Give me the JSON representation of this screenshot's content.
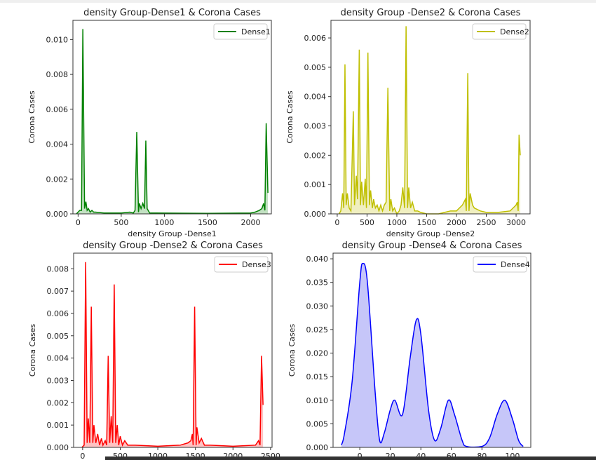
{
  "chart_data": [
    {
      "type": "area",
      "title": "density Group-Dense1 & Corona Cases",
      "xlabel": "density Group -Dense1",
      "ylabel": "Corona Cases",
      "legend": {
        "entry": "Dense1",
        "placement": "top-right"
      },
      "color": "#008000",
      "fill": "#b3d9b3",
      "xlim": [
        -60,
        2240
      ],
      "ylim": [
        0,
        0.0111
      ],
      "xticks": [
        0,
        500,
        1000,
        1500,
        2000
      ],
      "yticks": [
        0.0,
        0.002,
        0.004,
        0.006,
        0.008,
        0.01
      ],
      "ytick_labels": [
        "0.000",
        "0.002",
        "0.004",
        "0.006",
        "0.008",
        "0.010"
      ],
      "grid": false,
      "points": [
        [
          -20,
          0
        ],
        [
          0,
          0.0001
        ],
        [
          20,
          0.0002
        ],
        [
          40,
          0.0002
        ],
        [
          55,
          0.0106
        ],
        [
          75,
          0.0003
        ],
        [
          90,
          0.0007
        ],
        [
          105,
          0.0002
        ],
        [
          120,
          0.0003
        ],
        [
          140,
          0.0001
        ],
        [
          160,
          0.0002
        ],
        [
          180,
          0.0001
        ],
        [
          200,
          0.0001
        ],
        [
          300,
          5e-05
        ],
        [
          400,
          5e-05
        ],
        [
          500,
          5e-05
        ],
        [
          600,
          0.0001
        ],
        [
          640,
          5e-05
        ],
        [
          660,
          0.0002
        ],
        [
          680,
          0.0047
        ],
        [
          700,
          0.0001
        ],
        [
          710,
          0.0006
        ],
        [
          730,
          0.0003
        ],
        [
          750,
          0.0006
        ],
        [
          770,
          0.0003
        ],
        [
          785,
          0.0042
        ],
        [
          800,
          0.0003
        ],
        [
          830,
          5e-05
        ],
        [
          900,
          5e-05
        ],
        [
          1500,
          3e-05
        ],
        [
          2000,
          5e-05
        ],
        [
          2050,
          0.0001
        ],
        [
          2100,
          0.0002
        ],
        [
          2130,
          0.0003
        ],
        [
          2150,
          0.0006
        ],
        [
          2165,
          0.0002
        ],
        [
          2180,
          0.0052
        ],
        [
          2200,
          0.0012
        ]
      ]
    },
    {
      "type": "area",
      "title": "density Group -Dense2 & Corona Cases",
      "xlabel": "density Group -Dense2",
      "ylabel": "Corona Cases",
      "legend": {
        "entry": "Dense2",
        "placement": "top-right"
      },
      "color": "#bfbf00",
      "fill": "#ecebb0",
      "xlim": [
        -105,
        3235
      ],
      "ylim": [
        0,
        0.0066
      ],
      "xticks": [
        0,
        500,
        1000,
        1500,
        2000,
        2500,
        3000
      ],
      "yticks": [
        0.0,
        0.001,
        0.002,
        0.003,
        0.004,
        0.005,
        0.006
      ],
      "ytick_labels": [
        "0.000",
        "0.001",
        "0.002",
        "0.003",
        "0.004",
        "0.005",
        "0.006"
      ],
      "grid": false,
      "points": [
        [
          30,
          0
        ],
        [
          60,
          0.0001
        ],
        [
          90,
          0.0007
        ],
        [
          110,
          0.0002
        ],
        [
          130,
          0.0051
        ],
        [
          150,
          0.0003
        ],
        [
          170,
          0.0007
        ],
        [
          200,
          0.0002
        ],
        [
          230,
          0.0001
        ],
        [
          270,
          0.0035
        ],
        [
          290,
          0.0003
        ],
        [
          320,
          0.0013
        ],
        [
          340,
          0.0005
        ],
        [
          370,
          0.0056
        ],
        [
          390,
          0.0003
        ],
        [
          410,
          0.0011
        ],
        [
          440,
          0.0003
        ],
        [
          470,
          0.0012
        ],
        [
          490,
          0.0002
        ],
        [
          515,
          0.0055
        ],
        [
          540,
          0.0003
        ],
        [
          560,
          0.0008
        ],
        [
          590,
          0.0002
        ],
        [
          610,
          0.0005
        ],
        [
          640,
          0.0002
        ],
        [
          670,
          0.0003
        ],
        [
          700,
          0.0001
        ],
        [
          730,
          0.0003
        ],
        [
          760,
          0.0001
        ],
        [
          790,
          0.0003
        ],
        [
          820,
          0.0004
        ],
        [
          850,
          0.0043
        ],
        [
          880,
          0.0001
        ],
        [
          900,
          0.0005
        ],
        [
          930,
          0.0001
        ],
        [
          960,
          0.0002
        ],
        [
          1000,
          0
        ],
        [
          1040,
          0.0001
        ],
        [
          1070,
          0.0003
        ],
        [
          1100,
          0.0009
        ],
        [
          1130,
          0.0002
        ],
        [
          1155,
          0.0064
        ],
        [
          1180,
          0.0002
        ],
        [
          1200,
          0.0009
        ],
        [
          1230,
          0.0002
        ],
        [
          1260,
          0.0004
        ],
        [
          1300,
          0.0001
        ],
        [
          1350,
          0.0001
        ],
        [
          1400,
          5e-05
        ],
        [
          1500,
          0
        ],
        [
          1700,
          0
        ],
        [
          1800,
          5e-05
        ],
        [
          1900,
          0.0001
        ],
        [
          2000,
          0.0001
        ],
        [
          2050,
          0.0002
        ],
        [
          2100,
          0.0003
        ],
        [
          2150,
          0.0005
        ],
        [
          2165,
          0.0001
        ],
        [
          2190,
          0.0048
        ],
        [
          2210,
          0.0001
        ],
        [
          2230,
          0.0007
        ],
        [
          2270,
          0.0003
        ],
        [
          2300,
          0.0002
        ],
        [
          2400,
          0.0001
        ],
        [
          2500,
          5e-05
        ],
        [
          2700,
          5e-05
        ],
        [
          2900,
          0.0001
        ],
        [
          2950,
          0.0002
        ],
        [
          3000,
          0.0003
        ],
        [
          3020,
          0.0004
        ],
        [
          3035,
          0.0001
        ],
        [
          3050,
          0.0027
        ],
        [
          3070,
          0.002
        ]
      ]
    },
    {
      "type": "area",
      "title": "density Group -Dense2 & Corona Cases",
      "xlabel": "",
      "ylabel": "Corona Cases",
      "legend": {
        "entry": "Dense3",
        "placement": "top-right"
      },
      "color": "#ff0000",
      "fill": "#ffb3b3",
      "xlim": [
        -120,
        2520
      ],
      "ylim": [
        0,
        0.0087
      ],
      "xticks": [
        0,
        500,
        1000,
        1500,
        2000,
        2500
      ],
      "yticks": [
        0.0,
        0.001,
        0.002,
        0.003,
        0.004,
        0.005,
        0.006,
        0.007,
        0.008
      ],
      "ytick_labels": [
        "0.000",
        "0.001",
        "0.002",
        "0.003",
        "0.004",
        "0.005",
        "0.006",
        "0.007",
        "0.008"
      ],
      "grid": false,
      "points": [
        [
          -10,
          0
        ],
        [
          20,
          0.0001
        ],
        [
          40,
          0.0083
        ],
        [
          60,
          0.0002
        ],
        [
          75,
          0.0013
        ],
        [
          95,
          0.0002
        ],
        [
          115,
          0.0063
        ],
        [
          135,
          0.0002
        ],
        [
          150,
          0.001
        ],
        [
          175,
          0.0002
        ],
        [
          200,
          0.0006
        ],
        [
          225,
          0.0001
        ],
        [
          250,
          0.0004
        ],
        [
          270,
          0.0001
        ],
        [
          300,
          0.0003
        ],
        [
          320,
          0.0001
        ],
        [
          340,
          0.0041
        ],
        [
          360,
          0.0002
        ],
        [
          380,
          0.0014
        ],
        [
          400,
          0.0002
        ],
        [
          420,
          0.0073
        ],
        [
          440,
          0.0002
        ],
        [
          460,
          0.001
        ],
        [
          480,
          0.0001
        ],
        [
          500,
          0.0005
        ],
        [
          530,
          0.0001
        ],
        [
          560,
          0.0003
        ],
        [
          600,
          0.0001
        ],
        [
          700,
          0.0001
        ],
        [
          1000,
          5e-05
        ],
        [
          1300,
          0.0001
        ],
        [
          1400,
          0.0002
        ],
        [
          1440,
          0.0003
        ],
        [
          1460,
          0.0006
        ],
        [
          1470,
          0.0001
        ],
        [
          1490,
          0.0063
        ],
        [
          1510,
          0.0001
        ],
        [
          1520,
          0.0009
        ],
        [
          1550,
          0.0002
        ],
        [
          1580,
          0.0004
        ],
        [
          1620,
          0.0001
        ],
        [
          1700,
          0.0001
        ],
        [
          2000,
          5e-05
        ],
        [
          2300,
          0.0001
        ],
        [
          2340,
          0.0003
        ],
        [
          2360,
          0.0001
        ],
        [
          2380,
          0.0041
        ],
        [
          2400,
          0.0019
        ]
      ]
    },
    {
      "type": "area",
      "title": "density Group -Dense4 & Corona Cases",
      "xlabel": "",
      "ylabel": "Corona Cases",
      "legend": {
        "entry": "Dense4",
        "placement": "top-right"
      },
      "color": "#0000ff",
      "fill": "#b8b8f8",
      "xlim": [
        -17.5,
        112
      ],
      "ylim": [
        0,
        0.0412
      ],
      "xticks": [
        0,
        20,
        40,
        60,
        80,
        100
      ],
      "yticks": [
        0.0,
        0.005,
        0.01,
        0.015,
        0.02,
        0.025,
        0.03,
        0.035,
        0.04
      ],
      "ytick_labels": [
        "0.000",
        "0.005",
        "0.010",
        "0.015",
        "0.020",
        "0.025",
        "0.030",
        "0.035",
        "0.040"
      ],
      "grid": false,
      "points": [
        [
          -12,
          0.0005
        ],
        [
          -10,
          0.003
        ],
        [
          -5,
          0.014
        ],
        [
          0,
          0.035
        ],
        [
          2,
          0.039
        ],
        [
          5,
          0.035
        ],
        [
          10,
          0.012
        ],
        [
          13,
          0.0015
        ],
        [
          16,
          0.003
        ],
        [
          20,
          0.008
        ],
        [
          23,
          0.01
        ],
        [
          28,
          0.007
        ],
        [
          33,
          0.019
        ],
        [
          37,
          0.027
        ],
        [
          40,
          0.024
        ],
        [
          45,
          0.008
        ],
        [
          49,
          0.0015
        ],
        [
          53,
          0.004
        ],
        [
          58,
          0.01
        ],
        [
          62,
          0.007
        ],
        [
          67,
          0.0015
        ],
        [
          70,
          0.0002
        ],
        [
          80,
          0.0002
        ],
        [
          85,
          0.002
        ],
        [
          90,
          0.007
        ],
        [
          95,
          0.01
        ],
        [
          100,
          0.006
        ],
        [
          104,
          0.0015
        ],
        [
          107,
          0.0002
        ]
      ]
    }
  ]
}
